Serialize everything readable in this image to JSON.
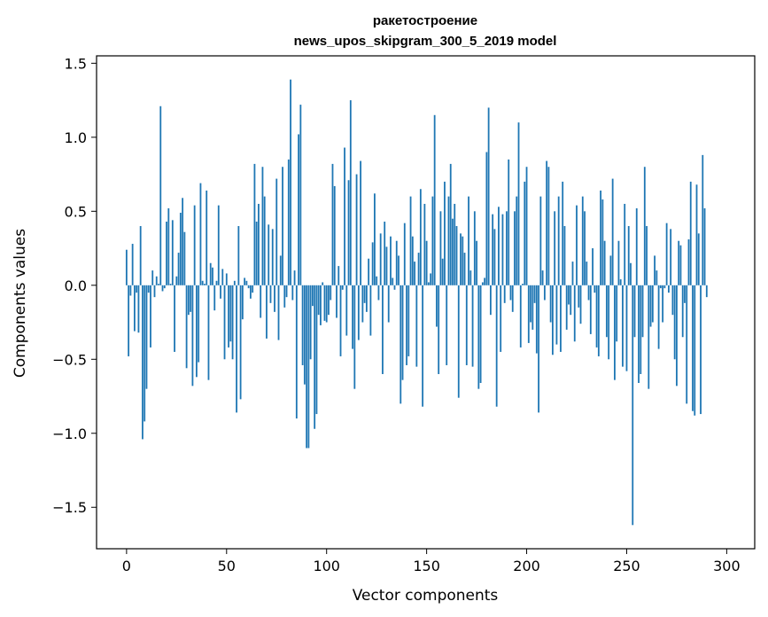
{
  "chart_data": {
    "type": "bar",
    "title": "ракетостроение",
    "subtitle": "news_upos_skipgram_300_5_2019 model",
    "xlabel": "Vector components",
    "ylabel": "Components values",
    "xlim": [
      -15,
      314
    ],
    "ylim": [
      -1.78,
      1.55
    ],
    "xticks": [
      0,
      50,
      100,
      150,
      200,
      250,
      300
    ],
    "xtick_labels": [
      "0",
      "50",
      "100",
      "150",
      "200",
      "250",
      "300"
    ],
    "yticks": [
      1.5,
      1.0,
      0.5,
      0.0,
      -0.5,
      -1.0,
      -1.5
    ],
    "ytick_labels": [
      "1.5",
      "1.0",
      "0.5",
      "0.0",
      "−0.5",
      "−1.0",
      "−1.5"
    ],
    "grid": false,
    "bar_color": "#1f77b4",
    "values": [
      0.24,
      -0.48,
      -0.07,
      0.28,
      -0.31,
      -0.05,
      -0.32,
      0.4,
      -1.04,
      -0.92,
      -0.7,
      -0.05,
      -0.42,
      0.1,
      -0.08,
      0.06,
      0.01,
      1.21,
      -0.04,
      -0.02,
      0.43,
      0.52,
      0.01,
      0.44,
      -0.45,
      0.06,
      0.22,
      0.49,
      0.59,
      0.36,
      -0.56,
      -0.2,
      -0.18,
      -0.68,
      0.54,
      -0.62,
      -0.52,
      0.69,
      0.03,
      0.01,
      0.64,
      -0.64,
      0.15,
      0.12,
      -0.17,
      0.03,
      0.54,
      -0.09,
      0.11,
      -0.5,
      0.08,
      -0.42,
      -0.38,
      -0.5,
      0.03,
      -0.86,
      0.4,
      -0.77,
      -0.23,
      0.05,
      0.03,
      -0.02,
      -0.09,
      -0.05,
      0.82,
      0.43,
      0.55,
      -0.22,
      0.8,
      0.6,
      -0.36,
      0.41,
      -0.12,
      0.38,
      -0.18,
      0.72,
      -0.37,
      0.2,
      0.8,
      -0.15,
      -0.08,
      0.85,
      1.39,
      -0.1,
      0.1,
      -0.9,
      1.02,
      1.22,
      -0.54,
      -0.67,
      -1.1,
      -1.1,
      -0.5,
      -0.14,
      -0.97,
      -0.87,
      -0.2,
      -0.27,
      0.02,
      -0.24,
      -0.25,
      -0.2,
      -0.1,
      0.82,
      0.67,
      -0.22,
      0.13,
      -0.48,
      -0.03,
      0.93,
      -0.34,
      0.71,
      1.25,
      -0.43,
      -0.7,
      0.75,
      -0.37,
      0.84,
      -0.25,
      -0.12,
      -0.18,
      0.18,
      -0.34,
      0.29,
      0.62,
      0.06,
      -0.1,
      0.35,
      -0.6,
      0.43,
      0.26,
      -0.25,
      0.33,
      0.05,
      -0.03,
      0.3,
      0.2,
      -0.8,
      -0.64,
      0.42,
      -0.54,
      -0.48,
      0.6,
      0.33,
      0.16,
      -0.55,
      0.22,
      0.65,
      -0.82,
      0.55,
      0.3,
      0.02,
      0.08,
      0.6,
      1.15,
      -0.28,
      -0.6,
      0.5,
      0.18,
      0.7,
      -0.54,
      0.6,
      0.82,
      0.45,
      0.55,
      0.4,
      -0.76,
      0.35,
      0.33,
      0.22,
      -0.54,
      0.6,
      0.1,
      -0.55,
      0.5,
      0.3,
      -0.7,
      -0.66,
      0.02,
      0.05,
      0.9,
      1.2,
      -0.2,
      0.48,
      0.38,
      -0.82,
      0.53,
      -0.45,
      0.48,
      -0.12,
      0.5,
      0.85,
      -0.1,
      -0.18,
      0.5,
      0.6,
      1.1,
      -0.42,
      0.01,
      0.7,
      0.8,
      -0.39,
      -0.25,
      -0.3,
      -0.12,
      -0.46,
      -0.86,
      0.6,
      0.1,
      -0.1,
      0.84,
      0.8,
      -0.25,
      -0.47,
      0.5,
      -0.4,
      0.6,
      -0.45,
      0.7,
      0.4,
      -0.3,
      -0.13,
      -0.2,
      0.16,
      -0.38,
      0.54,
      -0.15,
      -0.26,
      0.6,
      0.5,
      0.16,
      -0.1,
      -0.33,
      0.25,
      -0.05,
      -0.42,
      -0.48,
      0.64,
      0.58,
      0.3,
      -0.35,
      -0.5,
      0.2,
      0.72,
      -0.64,
      -0.38,
      0.3,
      0.04,
      -0.55,
      0.55,
      -0.58,
      0.4,
      0.15,
      -1.62,
      -0.35,
      0.52,
      -0.66,
      -0.6,
      -0.35,
      0.8,
      0.4,
      -0.7,
      -0.28,
      -0.25,
      0.2,
      0.1,
      -0.43,
      -0.02,
      -0.25,
      -0.02,
      0.42,
      -0.05,
      0.38,
      -0.2,
      -0.5,
      -0.68,
      0.3,
      0.27,
      -0.35,
      -0.12,
      -0.8,
      0.31,
      0.7,
      -0.85,
      -0.88,
      0.68,
      0.35,
      -0.87,
      0.88,
      0.52,
      -0.08
    ]
  }
}
